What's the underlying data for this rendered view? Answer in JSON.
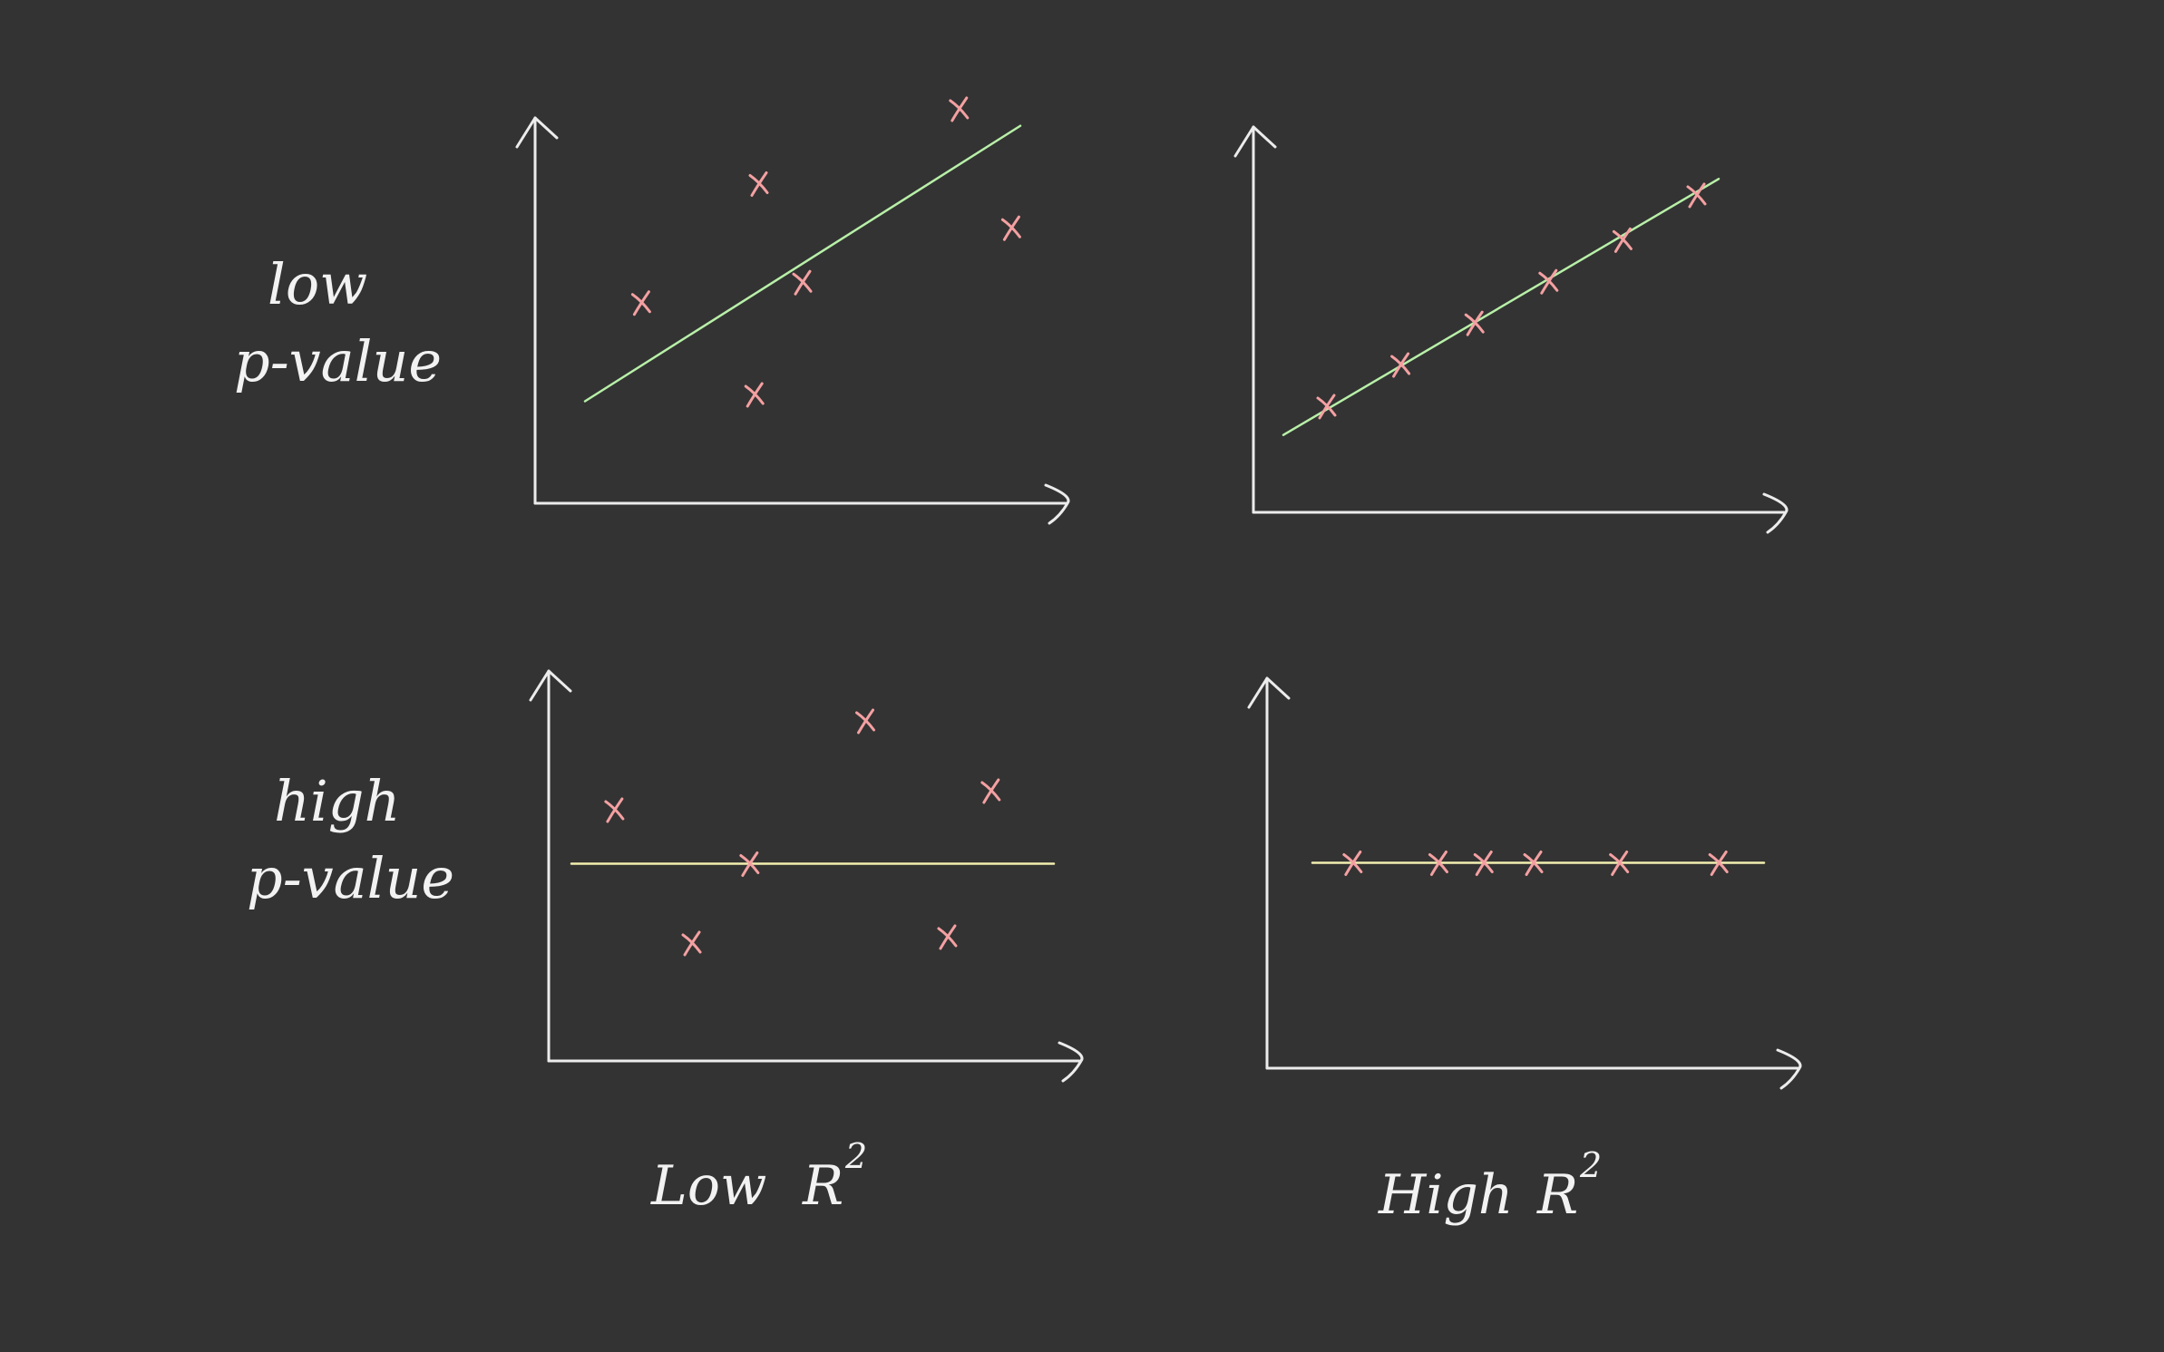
{
  "row_labels": [
    {
      "line1": "low",
      "line2": "p-value"
    },
    {
      "line1": "high",
      "line2": "p-value"
    }
  ],
  "column_labels": [
    {
      "text": "Low",
      "symbol": "R",
      "superscript": "2"
    },
    {
      "text": "High",
      "symbol": "R",
      "superscript": "2"
    }
  ],
  "colors": {
    "background": "#333333",
    "axes": "#ececec",
    "points": "#f4a0a2",
    "fit_line_low_p": "#b8f0a8",
    "fit_line_high_p": "#f2eeb0"
  },
  "chart_data": [
    {
      "type": "scatter",
      "row": "low p-value",
      "column": "Low R2",
      "trend": "increasing",
      "points": [
        [
          0.13,
          0.43
        ],
        [
          0.4,
          0.78
        ],
        [
          0.5,
          0.49
        ],
        [
          0.39,
          0.16
        ],
        [
          0.86,
          1.0
        ],
        [
          0.98,
          0.65
        ]
      ],
      "fit_line": [
        [
          0.0,
          0.14
        ],
        [
          1.0,
          0.95
        ]
      ]
    },
    {
      "type": "scatter",
      "row": "low p-value",
      "column": "High R2",
      "trend": "increasing",
      "points": [
        [
          0.1,
          0.19
        ],
        [
          0.27,
          0.32
        ],
        [
          0.44,
          0.45
        ],
        [
          0.61,
          0.58
        ],
        [
          0.78,
          0.71
        ],
        [
          0.95,
          0.85
        ]
      ],
      "fit_line": [
        [
          0.0,
          0.1
        ],
        [
          1.0,
          0.9
        ]
      ]
    },
    {
      "type": "scatter",
      "row": "high p-value",
      "column": "Low R2",
      "trend": "flat",
      "points": [
        [
          0.09,
          0.62
        ],
        [
          0.37,
          0.45
        ],
        [
          0.25,
          0.2
        ],
        [
          0.61,
          0.9
        ],
        [
          0.87,
          0.68
        ],
        [
          0.78,
          0.22
        ]
      ],
      "fit_line": [
        [
          0.0,
          0.45
        ],
        [
          1.0,
          0.45
        ]
      ]
    },
    {
      "type": "scatter",
      "row": "high p-value",
      "column": "High R2",
      "trend": "flat",
      "points": [
        [
          0.09,
          0.45
        ],
        [
          0.28,
          0.45
        ],
        [
          0.38,
          0.45
        ],
        [
          0.49,
          0.45
        ],
        [
          0.68,
          0.45
        ],
        [
          0.9,
          0.45
        ]
      ],
      "fit_line": [
        [
          0.0,
          0.45
        ],
        [
          1.0,
          0.45
        ]
      ]
    }
  ]
}
